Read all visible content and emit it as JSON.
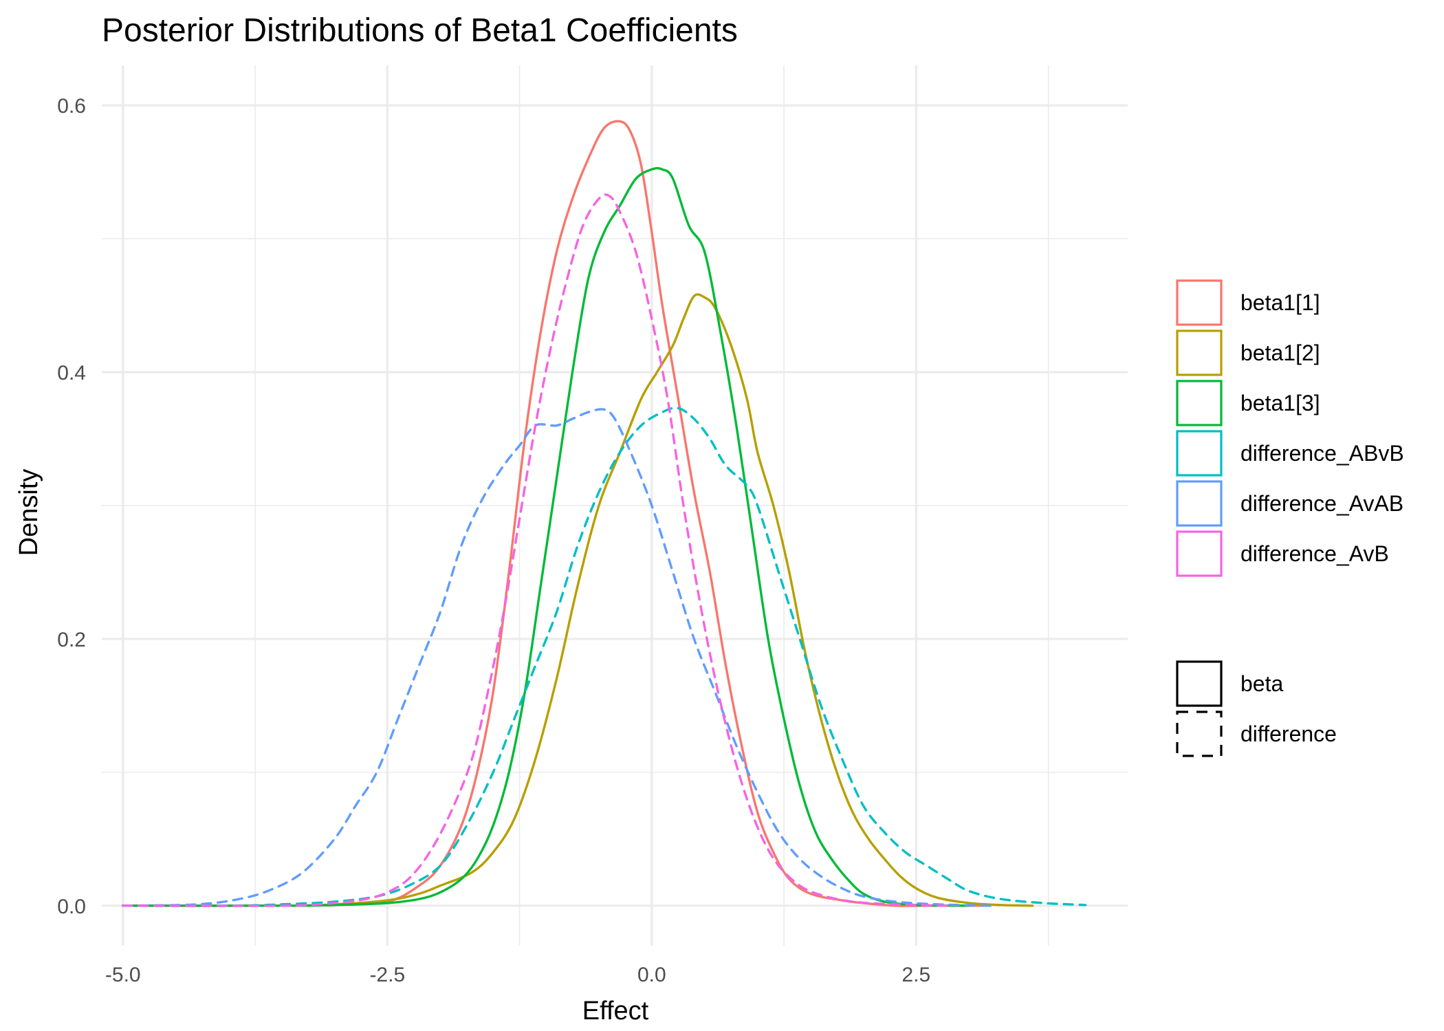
{
  "chart_data": {
    "type": "line",
    "title": "Posterior Distributions of Beta1 Coefficients",
    "xlabel": "Effect",
    "ylabel": "Density",
    "xlim": [
      -5.2,
      4.5
    ],
    "ylim": [
      -0.03,
      0.63
    ],
    "x_ticks": [
      -5.0,
      -2.5,
      0.0,
      2.5
    ],
    "x_tick_labels": [
      "-5.0",
      "-2.5",
      "0.0",
      "2.5"
    ],
    "x_minor_ticks": [
      -3.75,
      -1.25,
      1.25,
      3.75
    ],
    "y_ticks": [
      0.0,
      0.2,
      0.4,
      0.6
    ],
    "y_tick_labels": [
      "0.0",
      "0.2",
      "0.4",
      "0.6"
    ],
    "y_minor_ticks": [
      0.1,
      0.3,
      0.5
    ],
    "grid": true,
    "legend_position": "right",
    "series": [
      {
        "name": "beta1[1]",
        "color": "#F8766D",
        "linetype": "beta",
        "points": [
          [
            -5.0,
            0
          ],
          [
            -3.5,
            0
          ],
          [
            -3.0,
            0.0005
          ],
          [
            -2.5,
            0.003
          ],
          [
            -2.2,
            0.015
          ],
          [
            -2.0,
            0.03
          ],
          [
            -1.8,
            0.06
          ],
          [
            -1.65,
            0.1
          ],
          [
            -1.5,
            0.16
          ],
          [
            -1.35,
            0.25
          ],
          [
            -1.2,
            0.35
          ],
          [
            -1.05,
            0.43
          ],
          [
            -0.9,
            0.49
          ],
          [
            -0.75,
            0.53
          ],
          [
            -0.6,
            0.56
          ],
          [
            -0.45,
            0.583
          ],
          [
            -0.3,
            0.588
          ],
          [
            -0.2,
            0.58
          ],
          [
            -0.1,
            0.555
          ],
          [
            0.0,
            0.505
          ],
          [
            0.1,
            0.45
          ],
          [
            0.25,
            0.38
          ],
          [
            0.4,
            0.31
          ],
          [
            0.55,
            0.25
          ],
          [
            0.7,
            0.18
          ],
          [
            0.85,
            0.12
          ],
          [
            1.0,
            0.07
          ],
          [
            1.15,
            0.04
          ],
          [
            1.3,
            0.02
          ],
          [
            1.5,
            0.009
          ],
          [
            1.8,
            0.004
          ],
          [
            2.0,
            0.002
          ],
          [
            2.3,
            0
          ],
          [
            2.7,
            0
          ],
          [
            3.2,
            0
          ]
        ]
      },
      {
        "name": "beta1[2]",
        "color": "#B79F00",
        "linetype": "beta",
        "points": [
          [
            -5.0,
            0
          ],
          [
            -3.5,
            0
          ],
          [
            -3.0,
            0.001
          ],
          [
            -2.5,
            0.004
          ],
          [
            -2.2,
            0.009
          ],
          [
            -2.0,
            0.015
          ],
          [
            -1.7,
            0.025
          ],
          [
            -1.5,
            0.04
          ],
          [
            -1.3,
            0.065
          ],
          [
            -1.1,
            0.11
          ],
          [
            -0.9,
            0.17
          ],
          [
            -0.7,
            0.24
          ],
          [
            -0.5,
            0.3
          ],
          [
            -0.3,
            0.34
          ],
          [
            -0.1,
            0.38
          ],
          [
            0.05,
            0.4
          ],
          [
            0.2,
            0.42
          ],
          [
            0.3,
            0.44
          ],
          [
            0.4,
            0.457
          ],
          [
            0.5,
            0.456
          ],
          [
            0.6,
            0.448
          ],
          [
            0.75,
            0.42
          ],
          [
            0.9,
            0.38
          ],
          [
            1.0,
            0.34
          ],
          [
            1.15,
            0.3
          ],
          [
            1.3,
            0.25
          ],
          [
            1.45,
            0.19
          ],
          [
            1.6,
            0.14
          ],
          [
            1.75,
            0.1
          ],
          [
            1.9,
            0.07
          ],
          [
            2.05,
            0.05
          ],
          [
            2.2,
            0.035
          ],
          [
            2.35,
            0.022
          ],
          [
            2.5,
            0.013
          ],
          [
            2.7,
            0.006
          ],
          [
            3.0,
            0.002
          ],
          [
            3.3,
            0.0005
          ],
          [
            3.6,
            0
          ]
        ]
      },
      {
        "name": "beta1[3]",
        "color": "#00BA38",
        "linetype": "beta",
        "points": [
          [
            -5.0,
            0
          ],
          [
            -3.5,
            0
          ],
          [
            -3.0,
            0.0005
          ],
          [
            -2.5,
            0.002
          ],
          [
            -2.2,
            0.005
          ],
          [
            -2.0,
            0.01
          ],
          [
            -1.8,
            0.02
          ],
          [
            -1.65,
            0.035
          ],
          [
            -1.5,
            0.06
          ],
          [
            -1.35,
            0.1
          ],
          [
            -1.2,
            0.16
          ],
          [
            -1.05,
            0.24
          ],
          [
            -0.9,
            0.32
          ],
          [
            -0.75,
            0.4
          ],
          [
            -0.6,
            0.47
          ],
          [
            -0.45,
            0.505
          ],
          [
            -0.3,
            0.525
          ],
          [
            -0.15,
            0.545
          ],
          [
            0.0,
            0.552
          ],
          [
            0.1,
            0.552
          ],
          [
            0.2,
            0.545
          ],
          [
            0.35,
            0.51
          ],
          [
            0.5,
            0.49
          ],
          [
            0.65,
            0.43
          ],
          [
            0.8,
            0.36
          ],
          [
            0.95,
            0.28
          ],
          [
            1.1,
            0.2
          ],
          [
            1.25,
            0.14
          ],
          [
            1.4,
            0.09
          ],
          [
            1.55,
            0.055
          ],
          [
            1.7,
            0.035
          ],
          [
            1.85,
            0.02
          ],
          [
            2.0,
            0.009
          ],
          [
            2.2,
            0.003
          ],
          [
            2.5,
            0.0005
          ],
          [
            3.0,
            0
          ]
        ]
      },
      {
        "name": "difference_ABvB",
        "color": "#00BFC4",
        "linetype": "difference",
        "points": [
          [
            -5.0,
            0
          ],
          [
            -4.0,
            0
          ],
          [
            -3.5,
            0.001
          ],
          [
            -3.0,
            0.003
          ],
          [
            -2.6,
            0.007
          ],
          [
            -2.3,
            0.015
          ],
          [
            -2.0,
            0.03
          ],
          [
            -1.75,
            0.06
          ],
          [
            -1.5,
            0.1
          ],
          [
            -1.3,
            0.14
          ],
          [
            -1.1,
            0.18
          ],
          [
            -0.9,
            0.22
          ],
          [
            -0.7,
            0.27
          ],
          [
            -0.5,
            0.31
          ],
          [
            -0.3,
            0.34
          ],
          [
            -0.1,
            0.36
          ],
          [
            0.1,
            0.37
          ],
          [
            0.25,
            0.373
          ],
          [
            0.4,
            0.365
          ],
          [
            0.55,
            0.35
          ],
          [
            0.7,
            0.33
          ],
          [
            0.9,
            0.315
          ],
          [
            1.0,
            0.3
          ],
          [
            1.2,
            0.25
          ],
          [
            1.4,
            0.2
          ],
          [
            1.6,
            0.15
          ],
          [
            1.8,
            0.11
          ],
          [
            2.0,
            0.075
          ],
          [
            2.2,
            0.055
          ],
          [
            2.4,
            0.04
          ],
          [
            2.6,
            0.03
          ],
          [
            2.8,
            0.02
          ],
          [
            3.0,
            0.011
          ],
          [
            3.3,
            0.005
          ],
          [
            3.7,
            0.002
          ],
          [
            4.1,
            0.0005
          ]
        ]
      },
      {
        "name": "difference_AvAB",
        "color": "#619CFF",
        "linetype": "difference",
        "points": [
          [
            -5.0,
            0
          ],
          [
            -4.3,
            0.001
          ],
          [
            -3.9,
            0.005
          ],
          [
            -3.6,
            0.012
          ],
          [
            -3.3,
            0.025
          ],
          [
            -3.0,
            0.05
          ],
          [
            -2.8,
            0.075
          ],
          [
            -2.6,
            0.1
          ],
          [
            -2.4,
            0.14
          ],
          [
            -2.2,
            0.18
          ],
          [
            -2.0,
            0.22
          ],
          [
            -1.8,
            0.27
          ],
          [
            -1.6,
            0.305
          ],
          [
            -1.4,
            0.33
          ],
          [
            -1.25,
            0.345
          ],
          [
            -1.1,
            0.36
          ],
          [
            -0.9,
            0.36
          ],
          [
            -0.75,
            0.365
          ],
          [
            -0.6,
            0.37
          ],
          [
            -0.45,
            0.372
          ],
          [
            -0.35,
            0.365
          ],
          [
            -0.2,
            0.34
          ],
          [
            0.0,
            0.3
          ],
          [
            0.2,
            0.25
          ],
          [
            0.4,
            0.2
          ],
          [
            0.6,
            0.16
          ],
          [
            0.8,
            0.12
          ],
          [
            1.0,
            0.085
          ],
          [
            1.2,
            0.055
          ],
          [
            1.4,
            0.035
          ],
          [
            1.6,
            0.022
          ],
          [
            1.8,
            0.013
          ],
          [
            2.0,
            0.007
          ],
          [
            2.3,
            0.003
          ],
          [
            2.7,
            0.001
          ],
          [
            3.2,
            0
          ]
        ]
      },
      {
        "name": "difference_AvB",
        "color": "#F564E3",
        "linetype": "difference",
        "points": [
          [
            -5.0,
            0
          ],
          [
            -3.5,
            0
          ],
          [
            -3.0,
            0.002
          ],
          [
            -2.7,
            0.005
          ],
          [
            -2.5,
            0.01
          ],
          [
            -2.3,
            0.02
          ],
          [
            -2.1,
            0.04
          ],
          [
            -1.9,
            0.07
          ],
          [
            -1.7,
            0.11
          ],
          [
            -1.55,
            0.16
          ],
          [
            -1.4,
            0.22
          ],
          [
            -1.25,
            0.29
          ],
          [
            -1.1,
            0.36
          ],
          [
            -0.95,
            0.42
          ],
          [
            -0.8,
            0.47
          ],
          [
            -0.65,
            0.51
          ],
          [
            -0.5,
            0.53
          ],
          [
            -0.4,
            0.532
          ],
          [
            -0.3,
            0.52
          ],
          [
            -0.15,
            0.49
          ],
          [
            0.0,
            0.44
          ],
          [
            0.15,
            0.38
          ],
          [
            0.3,
            0.3
          ],
          [
            0.45,
            0.23
          ],
          [
            0.6,
            0.17
          ],
          [
            0.75,
            0.12
          ],
          [
            0.9,
            0.08
          ],
          [
            1.05,
            0.05
          ],
          [
            1.2,
            0.03
          ],
          [
            1.4,
            0.015
          ],
          [
            1.6,
            0.008
          ],
          [
            1.9,
            0.003
          ],
          [
            2.3,
            0.001
          ],
          [
            2.8,
            0
          ]
        ]
      }
    ],
    "linetype_legend": [
      {
        "name": "beta",
        "dash": "solid"
      },
      {
        "name": "difference",
        "dash": "dashed"
      }
    ]
  }
}
